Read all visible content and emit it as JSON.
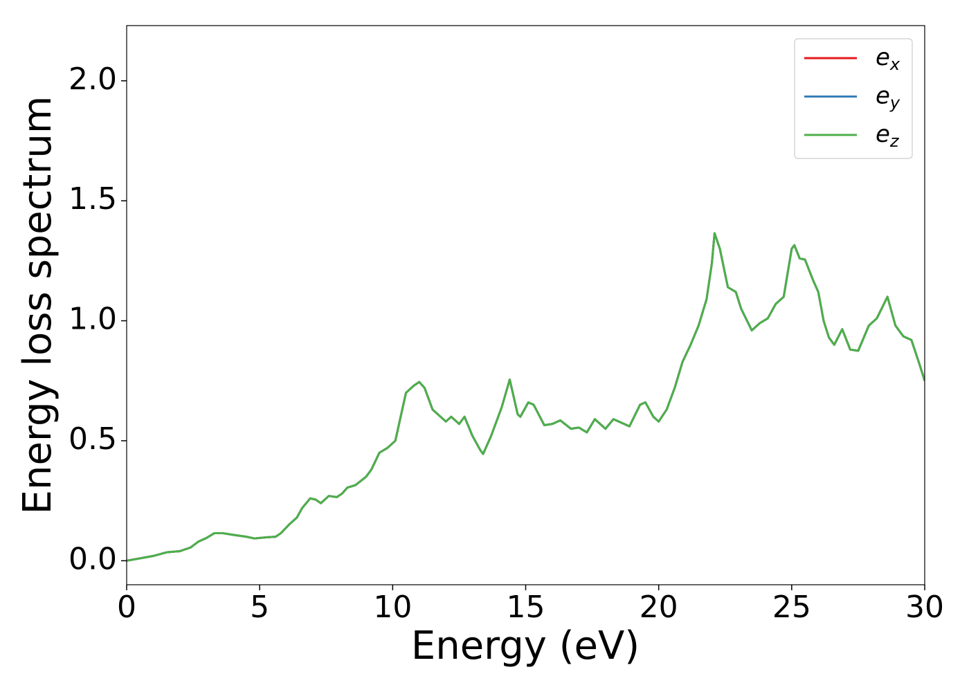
{
  "chart_data": {
    "type": "line",
    "xlabel": "Energy (eV)",
    "ylabel": "Energy loss spectrum",
    "x": [
      0,
      0.5,
      1.0,
      1.5,
      2.0,
      2.4,
      2.7,
      3.0,
      3.3,
      3.6,
      4.0,
      4.5,
      4.8,
      5.2,
      5.6,
      5.8,
      6.1,
      6.4,
      6.6,
      6.9,
      7.1,
      7.3,
      7.6,
      7.9,
      8.1,
      8.3,
      8.6,
      9.0,
      9.2,
      9.5,
      9.8,
      10.1,
      10.3,
      10.5,
      10.8,
      11.0,
      11.2,
      11.5,
      12.0,
      12.2,
      12.5,
      12.7,
      13.0,
      13.3,
      13.4,
      13.7,
      14.1,
      14.4,
      14.7,
      14.8,
      15.1,
      15.3,
      15.7,
      16.0,
      16.3,
      16.7,
      17.0,
      17.3,
      17.6,
      18.0,
      18.3,
      18.6,
      18.9,
      19.3,
      19.5,
      19.8,
      20.0,
      20.3,
      20.6,
      20.9,
      21.2,
      21.5,
      21.8,
      22.0,
      22.1,
      22.3,
      22.6,
      22.9,
      23.1,
      23.5,
      23.8,
      24.1,
      24.4,
      24.7,
      25.0,
      25.1,
      25.3,
      25.5,
      25.8,
      26.0,
      26.2,
      26.4,
      26.6,
      26.9,
      27.2,
      27.5,
      27.9,
      28.2,
      28.6,
      28.9,
      29.2,
      29.5,
      29.8,
      30.0
    ],
    "series": [
      {
        "name": "ex",
        "color": "#e41a1c",
        "values": [
          0.0,
          0.01,
          0.02,
          0.035,
          0.04,
          0.055,
          0.08,
          0.095,
          0.115,
          0.115,
          0.108,
          0.1,
          0.093,
          0.097,
          0.1,
          0.115,
          0.15,
          0.18,
          0.22,
          0.26,
          0.255,
          0.24,
          0.27,
          0.265,
          0.28,
          0.305,
          0.315,
          0.35,
          0.38,
          0.45,
          0.47,
          0.5,
          0.6,
          0.7,
          0.73,
          0.745,
          0.72,
          0.63,
          0.58,
          0.6,
          0.57,
          0.6,
          0.52,
          0.46,
          0.445,
          0.52,
          0.64,
          0.755,
          0.61,
          0.6,
          0.66,
          0.65,
          0.565,
          0.57,
          0.585,
          0.55,
          0.555,
          0.535,
          0.59,
          0.55,
          0.59,
          0.575,
          0.56,
          0.65,
          0.66,
          0.6,
          0.58,
          0.63,
          0.72,
          0.83,
          0.9,
          0.98,
          1.09,
          1.24,
          1.365,
          1.3,
          1.14,
          1.12,
          1.05,
          0.96,
          0.99,
          1.01,
          1.07,
          1.1,
          1.3,
          1.315,
          1.26,
          1.255,
          1.17,
          1.12,
          1.0,
          0.93,
          0.9,
          0.965,
          0.88,
          0.875,
          0.98,
          1.01,
          1.1,
          0.98,
          0.935,
          0.92,
          0.82,
          0.75
        ]
      },
      {
        "name": "ey",
        "color": "#377eb8",
        "values": [
          0.0,
          0.01,
          0.02,
          0.035,
          0.04,
          0.055,
          0.08,
          0.095,
          0.115,
          0.115,
          0.108,
          0.1,
          0.093,
          0.097,
          0.1,
          0.115,
          0.15,
          0.18,
          0.22,
          0.26,
          0.255,
          0.24,
          0.27,
          0.265,
          0.28,
          0.305,
          0.315,
          0.35,
          0.38,
          0.45,
          0.47,
          0.5,
          0.6,
          0.7,
          0.73,
          0.745,
          0.72,
          0.63,
          0.58,
          0.6,
          0.57,
          0.6,
          0.52,
          0.46,
          0.445,
          0.52,
          0.64,
          0.755,
          0.61,
          0.6,
          0.66,
          0.65,
          0.565,
          0.57,
          0.585,
          0.55,
          0.555,
          0.535,
          0.59,
          0.55,
          0.59,
          0.575,
          0.56,
          0.65,
          0.66,
          0.6,
          0.58,
          0.63,
          0.72,
          0.83,
          0.9,
          0.98,
          1.09,
          1.24,
          1.365,
          1.3,
          1.14,
          1.12,
          1.05,
          0.96,
          0.99,
          1.01,
          1.07,
          1.1,
          1.3,
          1.315,
          1.26,
          1.255,
          1.17,
          1.12,
          1.0,
          0.93,
          0.9,
          0.965,
          0.88,
          0.875,
          0.98,
          1.01,
          1.1,
          0.98,
          0.935,
          0.92,
          0.82,
          0.75
        ]
      },
      {
        "name": "ez",
        "color": "#4daf4a",
        "values": [
          0.0,
          0.01,
          0.02,
          0.035,
          0.04,
          0.055,
          0.08,
          0.095,
          0.115,
          0.115,
          0.108,
          0.1,
          0.093,
          0.097,
          0.1,
          0.115,
          0.15,
          0.18,
          0.22,
          0.26,
          0.255,
          0.24,
          0.27,
          0.265,
          0.28,
          0.305,
          0.315,
          0.35,
          0.38,
          0.45,
          0.47,
          0.5,
          0.6,
          0.7,
          0.73,
          0.745,
          0.72,
          0.63,
          0.58,
          0.6,
          0.57,
          0.6,
          0.52,
          0.46,
          0.445,
          0.52,
          0.64,
          0.755,
          0.61,
          0.6,
          0.66,
          0.65,
          0.565,
          0.57,
          0.585,
          0.55,
          0.555,
          0.535,
          0.59,
          0.55,
          0.59,
          0.575,
          0.56,
          0.65,
          0.66,
          0.6,
          0.58,
          0.63,
          0.72,
          0.83,
          0.9,
          0.98,
          1.09,
          1.24,
          1.365,
          1.3,
          1.14,
          1.12,
          1.05,
          0.96,
          0.99,
          1.01,
          1.07,
          1.1,
          1.3,
          1.315,
          1.26,
          1.255,
          1.17,
          1.12,
          1.0,
          0.93,
          0.9,
          0.965,
          0.88,
          0.875,
          0.98,
          1.01,
          1.1,
          0.98,
          0.935,
          0.92,
          0.82,
          0.75
        ]
      }
    ],
    "xlim": [
      0,
      30
    ],
    "xticks": [
      0,
      5,
      10,
      15,
      20,
      25,
      30
    ],
    "ylim": [
      -0.1,
      2.23
    ],
    "yticks": [
      {
        "value": 0,
        "label": "0.0"
      },
      {
        "value": 0.5,
        "label": "0.5"
      },
      {
        "value": 1.0,
        "label": "1.0"
      },
      {
        "value": 1.5,
        "label": "1.5"
      },
      {
        "value": 2.0,
        "label": "2.0"
      }
    ],
    "grid": false,
    "legend": "upper right"
  }
}
